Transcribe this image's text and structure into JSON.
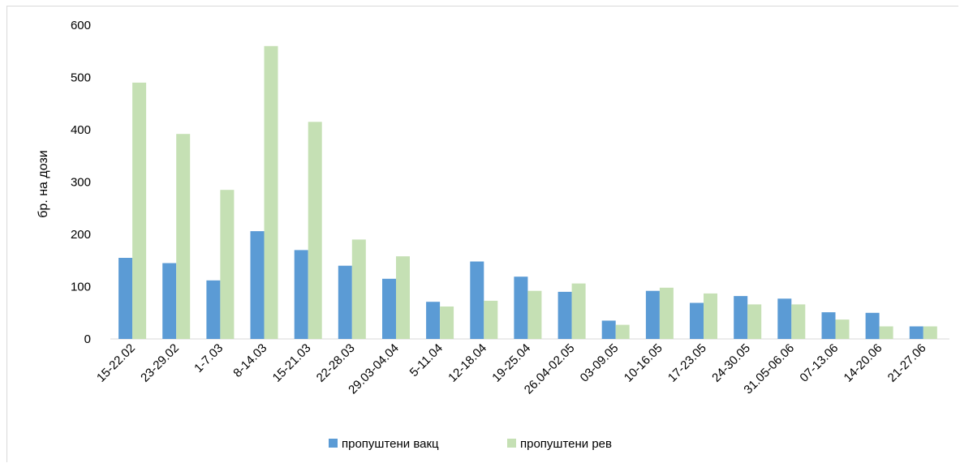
{
  "chart_data": {
    "type": "bar",
    "title": "",
    "xlabel": "",
    "ylabel": "бр. на дози",
    "ylim": [
      0,
      600
    ],
    "yticks": [
      0,
      100,
      200,
      300,
      400,
      500,
      600
    ],
    "grid": false,
    "legend_position": "bottom",
    "categories": [
      "15-22.02",
      "23-29.02",
      "1-7.03",
      "8-14.03",
      "15-21.03",
      "22-28.03",
      "29.03-04.04",
      "5-11.04",
      "12-18.04",
      "19-25.04",
      "26.04-02.05",
      "03-09.05",
      "10-16.05",
      "17-23.05",
      "24-30.05",
      "31.05-06.06",
      "07-13.06",
      "14-20.06",
      "21-27.06"
    ],
    "series": [
      {
        "name": "пропуштени вакц",
        "color": "#5b9bd5",
        "values": [
          155,
          145,
          112,
          206,
          170,
          140,
          115,
          71,
          148,
          119,
          90,
          35,
          92,
          69,
          82,
          77,
          51,
          50,
          24
        ]
      },
      {
        "name": "пропуштени рев",
        "color": "#c5e0b4",
        "values": [
          490,
          392,
          285,
          560,
          415,
          190,
          158,
          62,
          73,
          92,
          106,
          27,
          98,
          87,
          66,
          66,
          37,
          24,
          24
        ]
      }
    ]
  }
}
